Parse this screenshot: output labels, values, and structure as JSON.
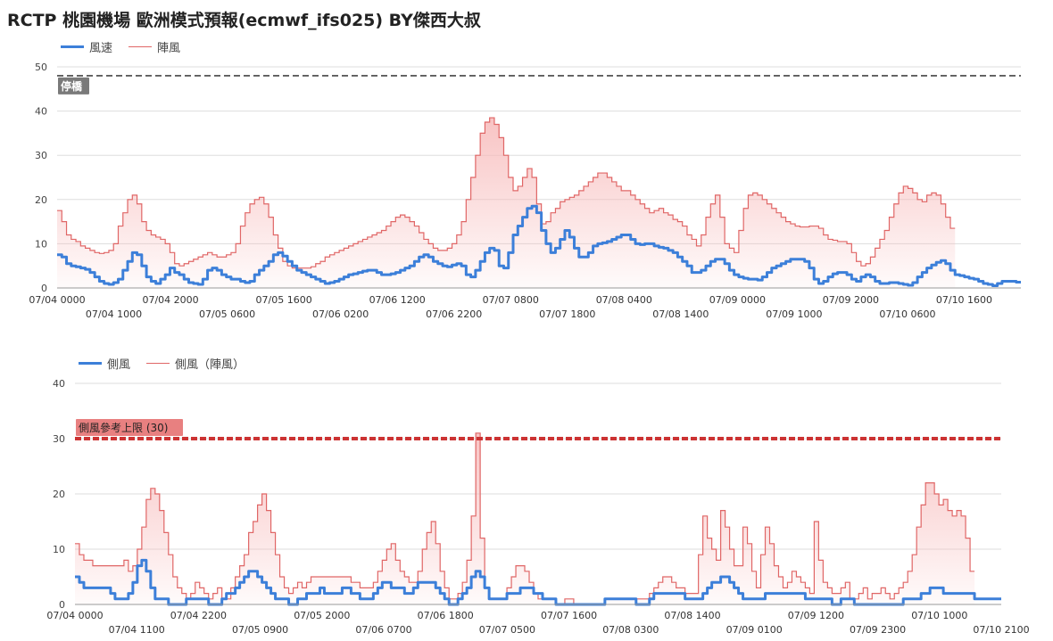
{
  "page": {
    "title": "RCTP 桃園機場 歐洲模式預報(ecmwf_ifs025)  BY傑西大叔"
  },
  "colors": {
    "wind": "#3c7fd9",
    "gust": "#e06666",
    "gust_fill": "#f7b9b9",
    "limit": "#cc3333",
    "threshold": "#444444",
    "grid": "#dddddd"
  },
  "chart_data": [
    {
      "type": "area",
      "title": "風速 / 陣風",
      "legend": [
        "風速",
        "陣風"
      ],
      "legend_position": "top-left",
      "ylim": [
        0,
        50
      ],
      "yticks": [
        0,
        10,
        20,
        30,
        40,
        50
      ],
      "threshold": {
        "value": 48,
        "label": "停橋"
      },
      "x_labels_row1": [
        "07/04 0000",
        "07/04 2000",
        "07/05 1600",
        "07/06 1200",
        "07/07 0800",
        "07/08 0400",
        "07/09 0000",
        "07/09 2000",
        "07/10 1600"
      ],
      "x_labels_row2": [
        "07/04 1000",
        "07/05 0600",
        "07/06 0200",
        "07/06 2200",
        "07/07 1800",
        "07/08 1400",
        "07/09 1000",
        "07/10 0600"
      ],
      "series": [
        {
          "name": "風速",
          "kind": "line",
          "values": [
            7.5,
            7,
            5.5,
            5,
            4.8,
            4.5,
            4.2,
            3.5,
            2.5,
            1.5,
            1,
            0.8,
            1.2,
            2,
            4,
            6,
            8,
            7.5,
            5,
            2.5,
            1.5,
            1,
            2,
            3,
            4.5,
            3.5,
            3,
            2,
            1.2,
            1,
            0.8,
            2,
            4,
            4.5,
            4,
            3,
            2.5,
            2,
            2,
            1.5,
            1.2,
            1.5,
            3,
            4,
            5,
            6,
            7.5,
            8,
            7.2,
            6,
            5,
            4,
            3.5,
            3,
            2.5,
            2,
            1.5,
            1,
            1.2,
            1.5,
            2,
            2.5,
            3,
            3.2,
            3.5,
            3.8,
            4,
            4,
            3.5,
            3,
            3,
            3.2,
            3.5,
            4,
            4.5,
            5,
            6,
            7,
            7.5,
            7,
            6,
            5.5,
            5,
            4.8,
            5.2,
            5.5,
            5,
            3,
            2.5,
            4,
            6,
            8,
            9,
            8.5,
            5,
            4.5,
            8,
            12,
            14,
            16,
            18,
            18.5,
            17,
            13,
            10,
            8,
            9,
            11,
            13,
            11.5,
            9,
            7,
            7,
            8,
            9.5,
            10,
            10.2,
            10.5,
            11,
            11.5,
            12,
            12,
            11,
            10,
            9.8,
            10,
            10,
            9.5,
            9.2,
            9,
            8.5,
            8,
            7,
            6,
            5,
            3.5,
            3.5,
            4,
            5,
            6,
            6.5,
            6.5,
            5.5,
            4,
            3,
            2.5,
            2.2,
            2,
            2,
            1.8,
            2.5,
            3.5,
            4.5,
            5,
            5.5,
            6,
            6.5,
            6.5,
            6.5,
            6,
            4.5,
            2,
            1,
            1.5,
            2.5,
            3.2,
            3.5,
            3.5,
            3,
            2,
            1.5,
            2.5,
            3,
            2.5,
            1.5,
            1,
            1,
            1.2,
            1.2,
            1,
            0.8,
            0.6,
            1.2,
            2.5,
            3.5,
            4.5,
            5.2,
            5.8,
            6.2,
            5.5,
            4,
            3,
            2.8,
            2.5,
            2.2,
            2,
            1.5,
            1,
            0.8,
            0.5,
            1,
            1.5,
            1.5,
            1.5,
            1.3
          ]
        },
        {
          "name": "陣風",
          "kind": "area",
          "values": [
            17.5,
            15,
            12,
            11,
            10.5,
            9.5,
            9,
            8.5,
            8,
            7.8,
            8,
            8.5,
            10,
            14,
            17,
            20,
            21,
            19,
            15,
            13,
            12,
            11.5,
            11,
            10,
            8,
            5.5,
            5,
            5.5,
            6,
            6.5,
            7,
            7.5,
            8,
            7.5,
            7,
            7,
            7.5,
            8,
            10,
            14,
            17,
            19,
            20,
            20.5,
            19,
            16,
            12,
            9,
            6,
            5,
            4.5,
            4.5,
            4.5,
            4.5,
            4.8,
            5.5,
            6,
            7,
            7.5,
            8,
            8.5,
            9,
            9.5,
            10,
            10.5,
            11,
            11.5,
            12,
            12.5,
            13,
            14,
            15,
            16,
            16.5,
            16,
            15,
            14,
            12.5,
            11,
            10,
            9,
            8.5,
            8.5,
            9,
            10,
            12,
            15,
            20,
            25,
            30,
            35,
            37.5,
            38.5,
            37,
            34,
            30,
            25,
            22,
            23,
            25,
            27,
            25,
            19,
            14.5,
            15,
            17,
            18,
            19.5,
            20,
            20.5,
            21,
            22,
            23,
            24,
            25,
            26,
            26,
            25,
            24,
            23,
            22,
            22,
            21,
            20,
            19,
            18,
            17,
            17.5,
            18,
            17,
            16.5,
            15.5,
            15,
            14,
            12,
            11,
            9.5,
            12,
            16,
            19,
            21,
            16,
            10,
            9,
            8,
            13,
            18,
            21,
            21.5,
            21,
            20,
            19,
            18,
            17,
            16,
            15,
            14.5,
            14,
            13.8,
            13.8,
            14,
            14,
            13.5,
            12,
            11,
            10.8,
            10.5,
            10.5,
            10,
            8,
            6,
            5,
            5.5,
            7,
            9,
            11,
            13,
            16,
            19,
            21.5,
            23,
            22.5,
            21.5,
            20,
            19.5,
            21,
            21.5,
            21,
            19,
            16,
            13.5
          ]
        }
      ]
    },
    {
      "type": "area",
      "title": "側風 / 側風（陣風）",
      "legend": [
        "側風",
        "側風（陣風）"
      ],
      "legend_position": "top-left",
      "ylim": [
        0,
        40
      ],
      "yticks": [
        0,
        10,
        20,
        30,
        40
      ],
      "threshold": {
        "value": 30,
        "label": "側風參考上限 (30)"
      },
      "x_labels_row1": [
        "07/04 0000",
        "07/04 2200",
        "07/05 2000",
        "07/06 1800",
        "07/07 1600",
        "07/08 1400",
        "07/09 1200",
        "07/10 1000"
      ],
      "x_labels_row2": [
        "07/04 1100",
        "07/05 0900",
        "07/06 0700",
        "07/07 0500",
        "07/08 0300",
        "07/09 0100",
        "07/09 2300",
        "07/10 2100"
      ],
      "series": [
        {
          "name": "側風",
          "kind": "line",
          "values": [
            5,
            4,
            3,
            3,
            3,
            3,
            3,
            3,
            2,
            1,
            1,
            1,
            2,
            4,
            7,
            8,
            6,
            3,
            1,
            1,
            1,
            0,
            0,
            0,
            0,
            1,
            1,
            1,
            1,
            1,
            0,
            0,
            0,
            1,
            2,
            2,
            3,
            4,
            5,
            6,
            6,
            5,
            4,
            3,
            2,
            1,
            1,
            1,
            0,
            0,
            1,
            1,
            2,
            2,
            2,
            3,
            2,
            2,
            2,
            2,
            3,
            3,
            2,
            2,
            1,
            1,
            1,
            2,
            3,
            4,
            4,
            3,
            3,
            3,
            2,
            2,
            3,
            4,
            4,
            4,
            4,
            3,
            2,
            1,
            0,
            0,
            1,
            2,
            3,
            5,
            6,
            5,
            3,
            1,
            1,
            1,
            1,
            2,
            2,
            2,
            3,
            3,
            3,
            2,
            2,
            1,
            1,
            1,
            0,
            0,
            0,
            0,
            0,
            0,
            0,
            0,
            0,
            0,
            0,
            1,
            1,
            1,
            1,
            1,
            1,
            1,
            0,
            0,
            0,
            1,
            2,
            2,
            2,
            2,
            2,
            2,
            2,
            1,
            1,
            1,
            1,
            2,
            3,
            4,
            4,
            5,
            5,
            4,
            3,
            2,
            1,
            1,
            1,
            1,
            1,
            2,
            2,
            2,
            2,
            2,
            2,
            2,
            2,
            2,
            1,
            1,
            1,
            1,
            1,
            1,
            0,
            0,
            1,
            1,
            1,
            0,
            0,
            0,
            0,
            0,
            0,
            0,
            0,
            0,
            0,
            0,
            1,
            1,
            1,
            1,
            2,
            2,
            3,
            3,
            3,
            2,
            2,
            2,
            2,
            2,
            2,
            2,
            1,
            1,
            1,
            1,
            1,
            1
          ]
        },
        {
          "name": "側風（陣風）",
          "kind": "area",
          "values": [
            11,
            9,
            8,
            8,
            7,
            7,
            7,
            7,
            7,
            7,
            7,
            8,
            6,
            7,
            10,
            14,
            19,
            21,
            20,
            17,
            13,
            9,
            5,
            3,
            2,
            1,
            2,
            4,
            3,
            2,
            1,
            2,
            3,
            1,
            1,
            3,
            5,
            7,
            9,
            13,
            15,
            18,
            20,
            17,
            13,
            9,
            5,
            3,
            2,
            3,
            4,
            3,
            4,
            5,
            5,
            5,
            5,
            5,
            5,
            5,
            5,
            5,
            4,
            4,
            3,
            3,
            3,
            4,
            6,
            8,
            10,
            11,
            8,
            6,
            5,
            4,
            4,
            6,
            10,
            13,
            15,
            11,
            6,
            3,
            1,
            1,
            2,
            4,
            8,
            16,
            31,
            12,
            3,
            1,
            1,
            1,
            1,
            3,
            5,
            7,
            7,
            6,
            4,
            2,
            1,
            1,
            1,
            1,
            0,
            0,
            1,
            1,
            0,
            0,
            0,
            0,
            0,
            0,
            0,
            1,
            1,
            1,
            1,
            1,
            1,
            1,
            1,
            1,
            1,
            2,
            3,
            4,
            5,
            5,
            4,
            3,
            3,
            2,
            2,
            2,
            9,
            16,
            12,
            10,
            8,
            17,
            14,
            10,
            7,
            7,
            14,
            11,
            6,
            3,
            9,
            14,
            11,
            7,
            5,
            3,
            4,
            6,
            5,
            4,
            3,
            2,
            15,
            8,
            4,
            3,
            2,
            2,
            3,
            4,
            1,
            1,
            2,
            3,
            1,
            2,
            2,
            3,
            2,
            1,
            2,
            3,
            4,
            6,
            9,
            14,
            18,
            22,
            22,
            20,
            18,
            19,
            17,
            16,
            17,
            16,
            12,
            6
          ]
        }
      ]
    }
  ]
}
